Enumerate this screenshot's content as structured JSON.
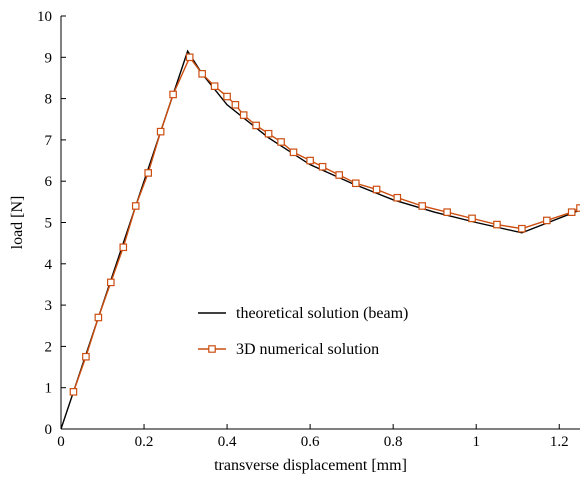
{
  "chart_data": {
    "type": "line",
    "xlabel": "transverse displacement [mm]",
    "ylabel": "load [N]",
    "xlim": [
      0,
      1.25
    ],
    "ylim": [
      0,
      10
    ],
    "xticks": [
      0,
      0.2,
      0.4,
      0.6,
      0.8,
      1,
      1.2
    ],
    "xtick_labels": [
      "0",
      "0.2",
      "0.4",
      "0.6",
      "0.8",
      "1",
      "1.2"
    ],
    "yticks": [
      0,
      1,
      2,
      3,
      4,
      5,
      6,
      7,
      8,
      9,
      10
    ],
    "ytick_labels": [
      "0",
      "1",
      "2",
      "3",
      "4",
      "5",
      "6",
      "7",
      "8",
      "9",
      "10"
    ],
    "grid": false,
    "legend": "center-right",
    "series": [
      {
        "name": "theoretical solution (beam)",
        "color": "#000000",
        "marker": "none",
        "x": [
          0,
          0.305,
          0.34,
          0.4,
          0.5,
          0.6,
          0.7,
          0.8,
          0.9,
          1.0,
          1.11,
          1.25
        ],
        "y": [
          0,
          9.15,
          8.6,
          7.85,
          7.05,
          6.4,
          5.95,
          5.55,
          5.25,
          5.0,
          4.75,
          5.3
        ]
      },
      {
        "name": "3D numerical solution",
        "color": "#cc4e10",
        "marker": "square",
        "x": [
          0.03,
          0.06,
          0.09,
          0.12,
          0.15,
          0.18,
          0.21,
          0.24,
          0.27,
          0.31,
          0.34,
          0.37,
          0.4,
          0.42,
          0.44,
          0.47,
          0.5,
          0.53,
          0.56,
          0.6,
          0.63,
          0.67,
          0.71,
          0.76,
          0.81,
          0.87,
          0.93,
          0.99,
          1.05,
          1.11,
          1.17,
          1.23,
          1.25
        ],
        "y": [
          0.9,
          1.75,
          2.7,
          3.55,
          4.4,
          5.4,
          6.2,
          7.2,
          8.1,
          9.0,
          8.6,
          8.3,
          8.05,
          7.85,
          7.6,
          7.35,
          7.15,
          6.95,
          6.7,
          6.5,
          6.35,
          6.15,
          5.95,
          5.8,
          5.6,
          5.4,
          5.25,
          5.1,
          4.95,
          4.85,
          5.05,
          5.25,
          5.35
        ]
      }
    ]
  }
}
